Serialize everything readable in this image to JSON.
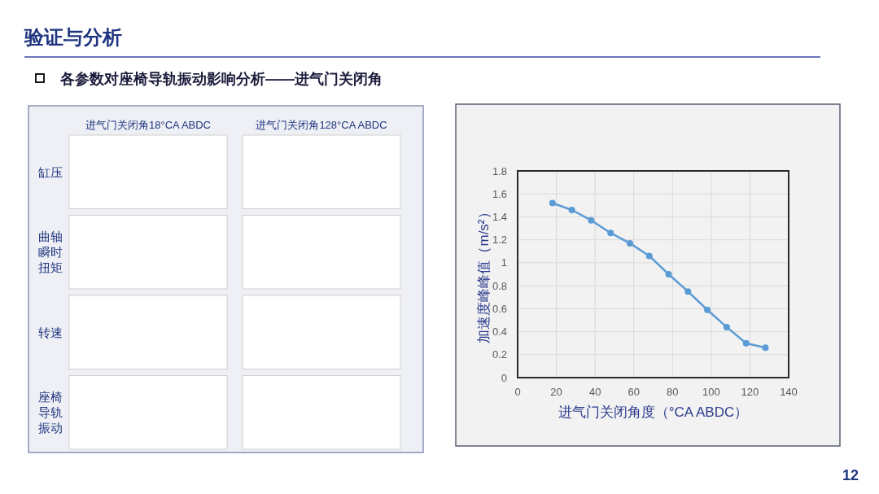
{
  "chart_data": [
    {
      "type": "other",
      "title": "验证与分析",
      "subtitle": "各参数对座椅导轨振动影响分析——进气门关闭角",
      "categories": [
        "进气门关闭角18°CA ABDC",
        "进气门关闭角128°CA ABDC"
      ],
      "y_categories": [
        "缸压",
        "曲轴瞬时扭矩",
        "转速",
        "座椅导轨振动"
      ],
      "annotations": [
        "12"
      ]
    },
    {
      "type": "line",
      "xlabel": "进气门关闭角度（°CA ABDC）",
      "ylabel": "加速度峰峰值（m/s²）",
      "x": [
        18,
        28,
        38,
        48,
        58,
        68,
        78,
        88,
        98,
        108,
        118,
        128
      ],
      "series": [
        {
          "color": "#5b9bd5",
          "values": [
            1.52,
            1.46,
            1.37,
            1.26,
            1.17,
            1.06,
            0.9,
            0.75,
            0.59,
            0.44,
            0.3,
            0.26
          ]
        }
      ],
      "xlim": [
        0,
        140
      ],
      "xticks": [
        0,
        20,
        40,
        60,
        80,
        100,
        120,
        140
      ],
      "ylim": [
        0,
        1.8
      ],
      "yticks": [
        0,
        0.2,
        0.4,
        0.6,
        0.8,
        1,
        1.2,
        1.4,
        1.6,
        1.8
      ],
      "grid": true,
      "marker": "circle",
      "line_style": "solid"
    }
  ]
}
